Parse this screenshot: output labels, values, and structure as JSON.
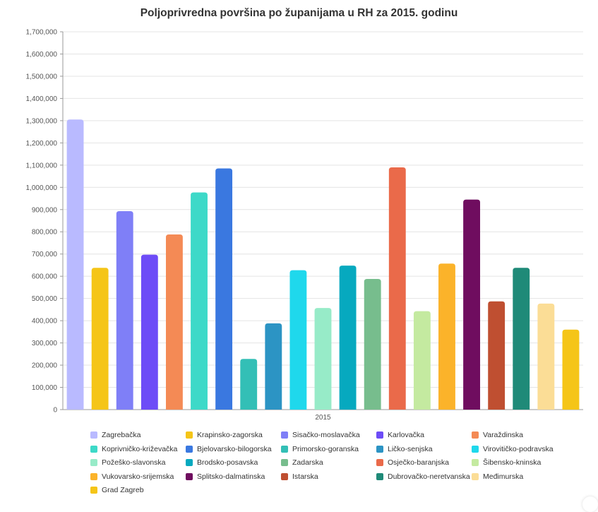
{
  "chart_data": {
    "type": "bar",
    "title": "Poljoprivredna površina po županijama u RH za 2015. godinu",
    "xlabel": "",
    "ylabel": "",
    "categories": [
      "2015"
    ],
    "ylim": [
      0,
      1700000
    ],
    "y_ticks": [
      "0",
      "100,000",
      "200,000",
      "300,000",
      "400,000",
      "500,000",
      "600,000",
      "700,000",
      "800,000",
      "900,000",
      "1,000,000",
      "1,100,000",
      "1,200,000",
      "1,300,000",
      "1,400,000",
      "1,500,000",
      "1,600,000",
      "1,700,000"
    ],
    "grid": true,
    "legend_position": "bottom",
    "series": [
      {
        "name": "Zagrebačka",
        "values": [
          1305000
        ],
        "color": "#b9baff"
      },
      {
        "name": "Krapinsko-zagorska",
        "values": [
          638000
        ],
        "color": "#f5c518"
      },
      {
        "name": "Sisačko-moslavačka",
        "values": [
          893000
        ],
        "color": "#7f7ff7"
      },
      {
        "name": "Karlovačka",
        "values": [
          697000
        ],
        "color": "#6d4cf7"
      },
      {
        "name": "Varaždinska",
        "values": [
          788000
        ],
        "color": "#f48a55"
      },
      {
        "name": "Koprivničko-križevačka",
        "values": [
          977000
        ],
        "color": "#3dd9c8"
      },
      {
        "name": "Bjelovarsko-bilogorska",
        "values": [
          1085000
        ],
        "color": "#3a78e0"
      },
      {
        "name": "Primorsko-goranska",
        "values": [
          228000
        ],
        "color": "#33bfb6"
      },
      {
        "name": "Ličko-senjska",
        "values": [
          388000
        ],
        "color": "#2c94c4"
      },
      {
        "name": "Virovitičko-podravska",
        "values": [
          627000
        ],
        "color": "#1fd8ec"
      },
      {
        "name": "Požeško-slavonska",
        "values": [
          457000
        ],
        "color": "#97ebc8"
      },
      {
        "name": "Brodsko-posavska",
        "values": [
          648000
        ],
        "color": "#06a9bf"
      },
      {
        "name": "Zadarska",
        "values": [
          588000
        ],
        "color": "#77bd8d"
      },
      {
        "name": "Osječko-baranjska",
        "values": [
          1090000
        ],
        "color": "#ea6a4a"
      },
      {
        "name": "Šibensko-kninska",
        "values": [
          443000
        ],
        "color": "#c4eaa0"
      },
      {
        "name": "Vukovarsko-srijemska",
        "values": [
          657000
        ],
        "color": "#fbb32a"
      },
      {
        "name": "Splitsko-dalmatinska",
        "values": [
          945000
        ],
        "color": "#6f0d5f"
      },
      {
        "name": "Istarska",
        "values": [
          487000
        ],
        "color": "#bf4f31"
      },
      {
        "name": "Dubrovačko-neretvanska",
        "values": [
          638000
        ],
        "color": "#1f8a78"
      },
      {
        "name": "Međimurska",
        "values": [
          477000
        ],
        "color": "#fbdd96"
      },
      {
        "name": "Grad Zagreb",
        "values": [
          360000
        ],
        "color": "#f5c518"
      }
    ]
  }
}
